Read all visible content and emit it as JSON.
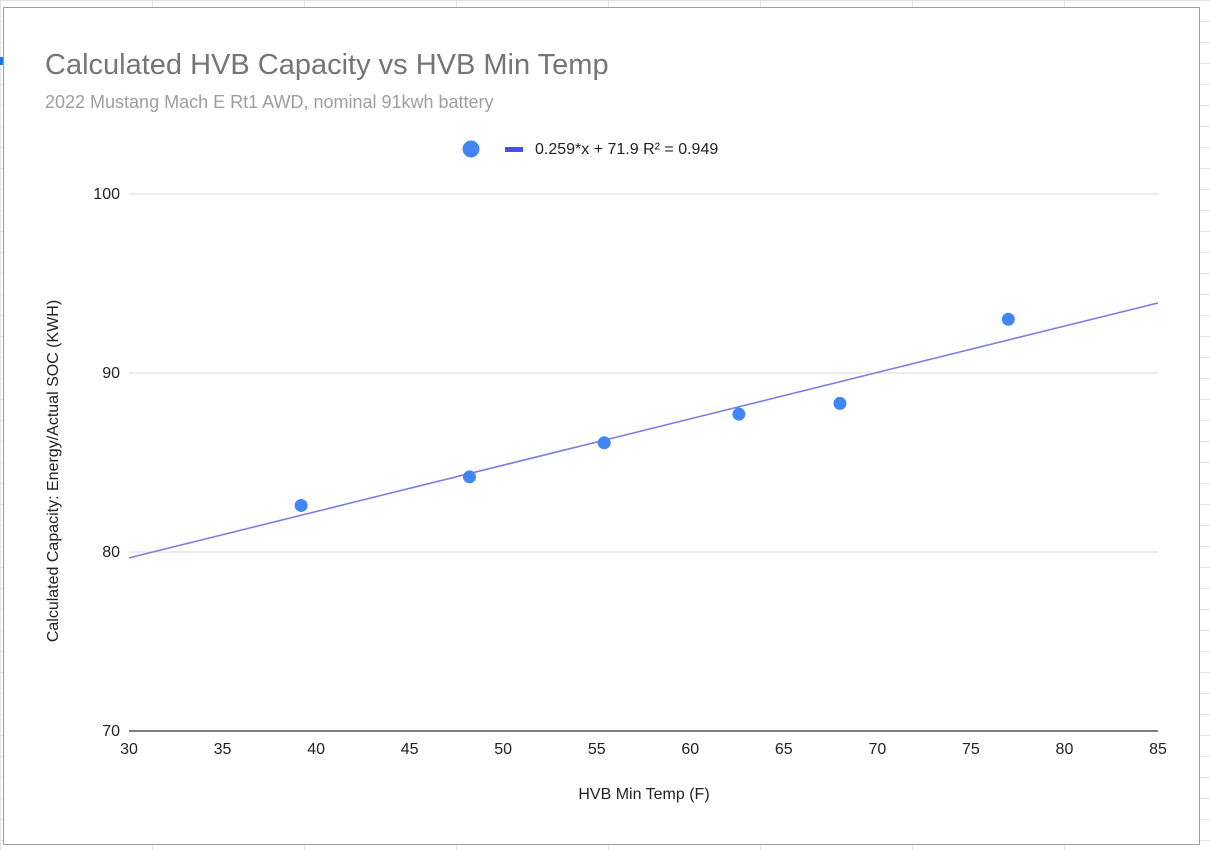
{
  "colors": {
    "point": "#4285f4",
    "trendline": "#7b7fe6",
    "legend_trend": "#4a4de7",
    "gridline": "#d9d9d9",
    "title": "#757575",
    "subtitle": "#9e9e9e"
  },
  "chart_data": {
    "type": "scatter",
    "title": "Calculated HVB Capacity vs HVB Min Temp",
    "subtitle": "2022 Mustang Mach E Rt1 AWD, nominal 91kwh battery",
    "xlabel": "HVB Min Temp (F)",
    "ylabel": "Calculated Capacity: Energy/Actual SOC  (KWH)",
    "xlim": [
      30,
      85
    ],
    "ylim": [
      70,
      100
    ],
    "x_ticks": [
      "30",
      "35",
      "40",
      "45",
      "50",
      "55",
      "60",
      "65",
      "70",
      "75",
      "80",
      "85"
    ],
    "y_ticks": [
      "70",
      "80",
      "90",
      "100"
    ],
    "grid": "horizontal",
    "legend_position": "top",
    "series": [
      {
        "x": [
          39.2,
          48.2,
          55.4,
          62.6,
          68.0,
          77.0
        ],
        "y": [
          82.6,
          84.2,
          86.1,
          87.7,
          88.3,
          93.0
        ]
      }
    ],
    "trendline": {
      "slope": 0.259,
      "intercept": 71.9,
      "label": "0.259*x + 71.9 R² = 0.949"
    }
  }
}
